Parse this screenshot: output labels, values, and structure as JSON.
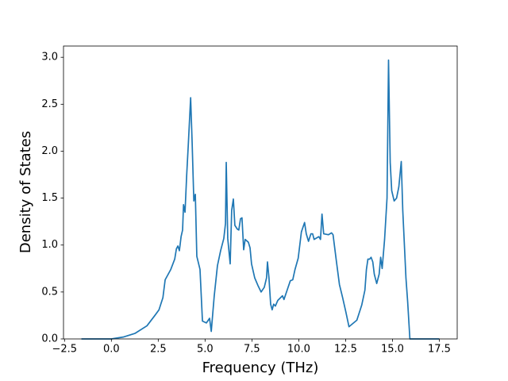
{
  "chart_data": {
    "type": "line",
    "xlabel": "Frequency (THz)",
    "ylabel": "Density of States",
    "color": "#1f77b4",
    "x": [
      -1.6,
      0,
      0.63,
      1.27,
      1.9,
      2.32,
      2.54,
      2.75,
      2.87,
      3.17,
      3.38,
      3.47,
      3.55,
      3.63,
      3.72,
      3.8,
      3.85,
      3.93,
      4.02,
      4.1,
      4.23,
      4.31,
      4.4,
      4.48,
      4.56,
      4.73,
      4.86,
      5.07,
      5.24,
      5.33,
      5.49,
      5.66,
      5.83,
      6.0,
      6.09,
      6.13,
      6.21,
      6.34,
      6.42,
      6.51,
      6.59,
      6.72,
      6.8,
      6.89,
      6.97,
      7.06,
      7.14,
      7.31,
      7.4,
      7.48,
      7.65,
      7.82,
      7.99,
      8.16,
      8.28,
      8.33,
      8.41,
      8.5,
      8.58,
      8.66,
      8.75,
      8.88,
      9.13,
      9.21,
      9.38,
      9.55,
      9.68,
      9.8,
      9.97,
      10.14,
      10.31,
      10.4,
      10.52,
      10.65,
      10.74,
      10.82,
      11.07,
      11.16,
      11.24,
      11.33,
      11.58,
      11.75,
      11.83,
      12.0,
      12.17,
      12.34,
      12.51,
      12.68,
      13.1,
      13.36,
      13.53,
      13.61,
      13.69,
      13.78,
      13.86,
      13.95,
      14.03,
      14.16,
      14.29,
      14.37,
      14.45,
      14.58,
      14.71,
      14.79,
      14.88,
      14.96,
      15.09,
      15.22,
      15.34,
      15.47,
      15.55,
      15.72,
      15.81,
      15.93,
      17.5
    ],
    "values": [
      0,
      0,
      0.02,
      0.06,
      0.14,
      0.25,
      0.31,
      0.44,
      0.63,
      0.74,
      0.85,
      0.96,
      0.99,
      0.94,
      1.09,
      1.16,
      1.43,
      1.35,
      1.75,
      2.05,
      2.57,
      2.09,
      1.47,
      1.54,
      0.88,
      0.74,
      0.19,
      0.17,
      0.22,
      0.08,
      0.46,
      0.78,
      0.94,
      1.07,
      1.23,
      1.88,
      1.07,
      0.8,
      1.37,
      1.49,
      1.21,
      1.17,
      1.16,
      1.28,
      1.29,
      0.95,
      1.06,
      1.03,
      0.97,
      0.8,
      0.65,
      0.57,
      0.5,
      0.55,
      0.65,
      0.82,
      0.65,
      0.37,
      0.31,
      0.37,
      0.35,
      0.41,
      0.46,
      0.42,
      0.52,
      0.62,
      0.63,
      0.74,
      0.86,
      1.14,
      1.24,
      1.12,
      1.04,
      1.12,
      1.12,
      1.06,
      1.09,
      1.06,
      1.33,
      1.12,
      1.11,
      1.13,
      1.11,
      0.84,
      0.58,
      0.44,
      0.29,
      0.13,
      0.2,
      0.36,
      0.52,
      0.74,
      0.85,
      0.85,
      0.87,
      0.82,
      0.69,
      0.59,
      0.69,
      0.87,
      0.75,
      1.06,
      1.5,
      2.97,
      1.88,
      1.58,
      1.47,
      1.5,
      1.62,
      1.89,
      1.37,
      0.65,
      0.4,
      0,
      0
    ],
    "xlim": [
      -2.555,
      18.455
    ],
    "ylim": [
      0,
      3.12
    ],
    "xticks": [
      {
        "value": -2.5,
        "label": "−2.5"
      },
      {
        "value": 0,
        "label": "0.0"
      },
      2.5,
      {
        "value": 5,
        "label": "5.0"
      },
      7.5,
      {
        "value": 10,
        "label": "10.0"
      },
      12.5,
      {
        "value": 15,
        "label": "15.0"
      },
      17.5
    ],
    "yticks": [
      {
        "value": 0,
        "label": "0.0"
      },
      0.5,
      {
        "value": 1,
        "label": "1.0"
      },
      1.5,
      {
        "value": 2,
        "label": "2.0"
      },
      2.5,
      {
        "value": 3,
        "label": "3.0"
      }
    ]
  }
}
